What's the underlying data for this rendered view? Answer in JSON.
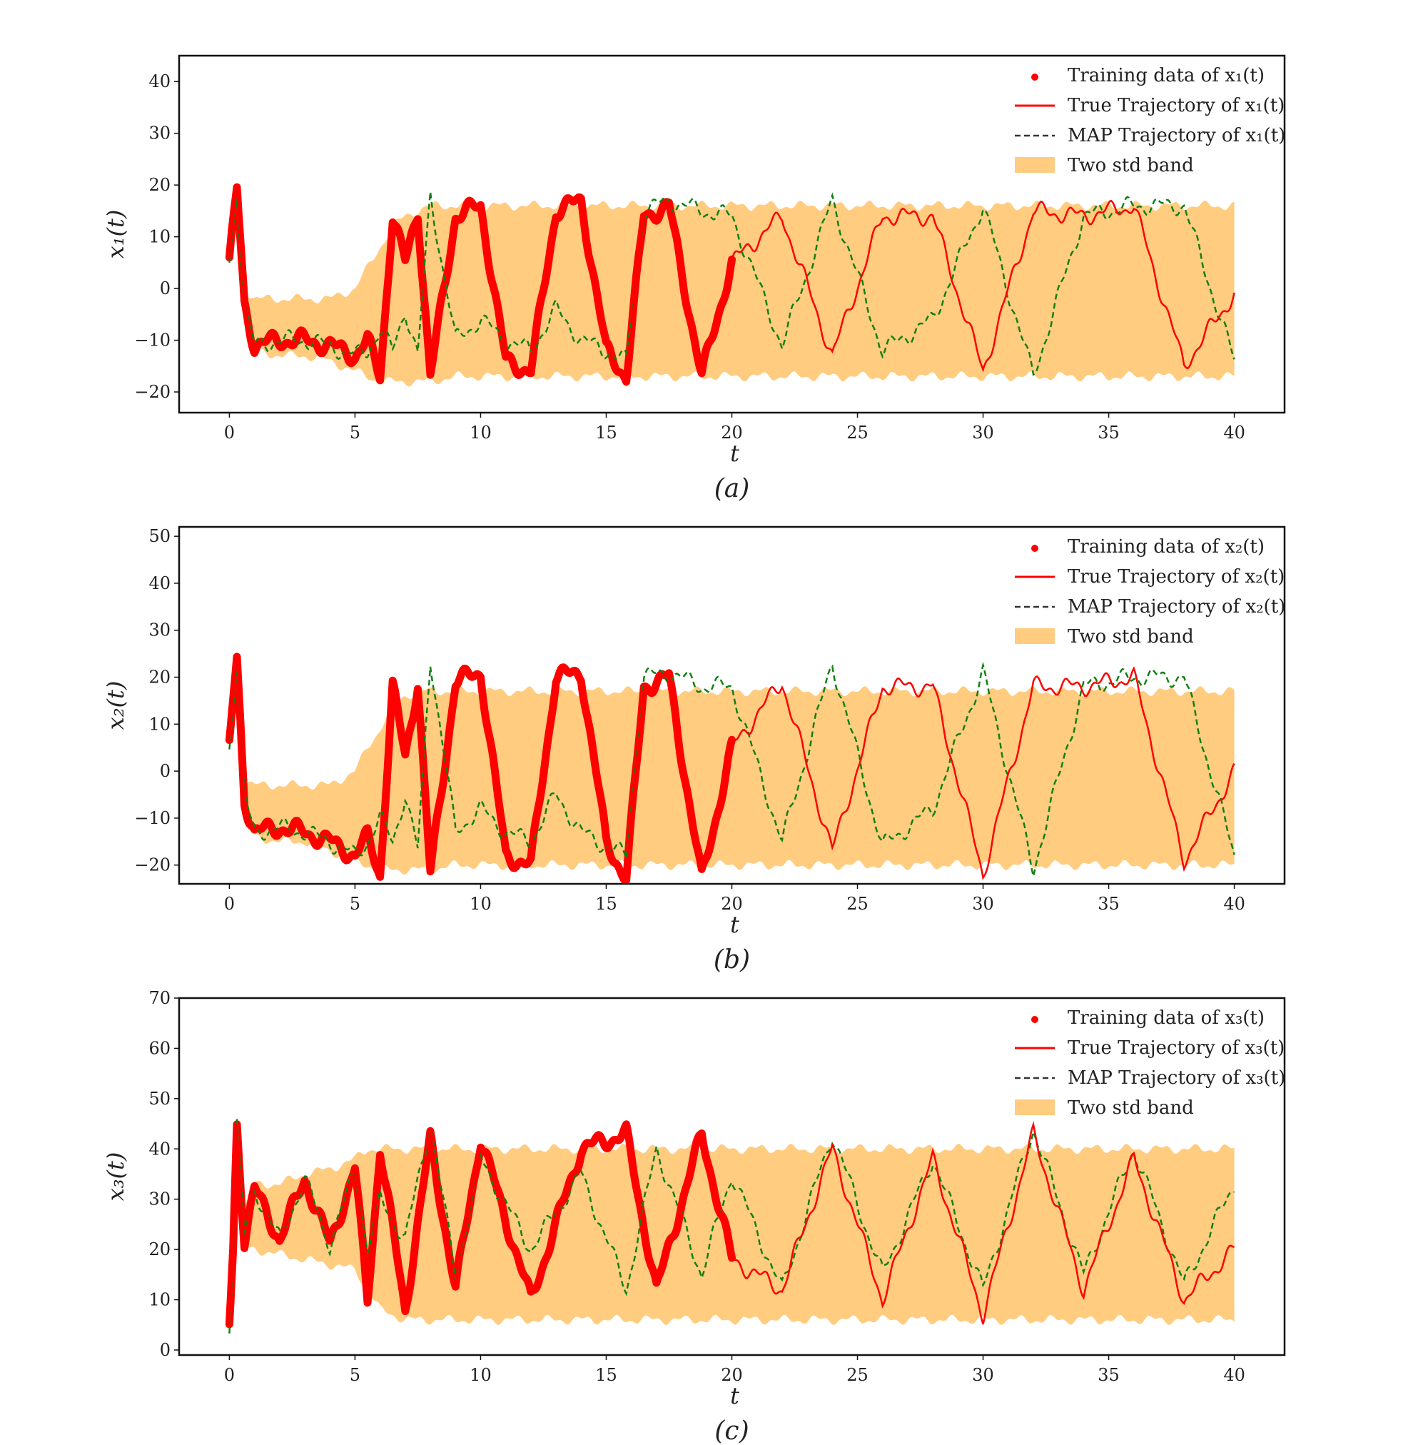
{
  "colors": {
    "training": "#ff0000",
    "true": "#ff0000",
    "map": "#138013",
    "band": "#ffcc80",
    "frame": "#111111"
  },
  "chart_data": [
    {
      "type": "line",
      "caption": "(a)",
      "xlabel": "t",
      "ylabel": "x₁(t)",
      "xlim": [
        -2,
        42
      ],
      "ylim": [
        -24,
        45
      ],
      "xticks": [
        0,
        5,
        10,
        15,
        20,
        25,
        30,
        35,
        40
      ],
      "yticks": [
        -20,
        -10,
        0,
        10,
        20,
        30,
        40
      ],
      "xtick_labels": [
        "0",
        "5",
        "10",
        "15",
        "20",
        "25",
        "30",
        "35",
        "40"
      ],
      "ytick_labels": [
        "−20",
        "−10",
        "0",
        "10",
        "20",
        "30",
        "40"
      ],
      "legend": {
        "position": "top-right",
        "entries": [
          "Training data of x₁(t)",
          "True Trajectory of x₁(t)",
          "MAP Trajectory of x₁(t)",
          "Two std band"
        ]
      },
      "series": [
        {
          "name": "Training data of x₁(t)",
          "kind": "points",
          "x_range": [
            0,
            20
          ]
        },
        {
          "name": "True Trajectory of x₁(t)",
          "kind": "line",
          "x_range": [
            0,
            40
          ]
        },
        {
          "name": "MAP Trajectory of x₁(t)",
          "kind": "dashed",
          "x_range": [
            0,
            40
          ]
        },
        {
          "name": "Two std band",
          "kind": "band",
          "x_range": [
            0,
            40
          ]
        }
      ],
      "keypoints": {
        "t": [
          0,
          0.15,
          0.3,
          0.6,
          1.0,
          2.0,
          3.0,
          4.0,
          5.0,
          5.5,
          6.0,
          6.5,
          7.0,
          7.5,
          8.0,
          9.0,
          10.0,
          11.0,
          12.0,
          13.0,
          14.0,
          15.0,
          15.8,
          16.5,
          17.5,
          18.8,
          20,
          22,
          24,
          26,
          28,
          30,
          32,
          34,
          36,
          38,
          40
        ],
        "true": [
          5,
          12,
          19,
          -3,
          -11,
          -10,
          -10,
          -11,
          -13,
          -10,
          -17,
          14,
          5,
          15,
          -17,
          14,
          16,
          -14,
          -16,
          15,
          17,
          -12,
          -17,
          14,
          16,
          -17,
          5,
          14,
          -13,
          14,
          14,
          -16,
          15,
          14,
          16,
          -15,
          -1
        ],
        "map": [
          5,
          12,
          19,
          -3,
          -11,
          -10,
          -10,
          -11,
          -13,
          -12,
          -8,
          -12,
          -4,
          -13,
          18,
          -10,
          -6,
          -10,
          -12,
          -4,
          -10,
          -12,
          -14,
          15,
          17,
          15,
          14,
          -11,
          17,
          -12,
          -6,
          16,
          -17,
          14,
          16,
          16,
          -14
        ],
        "band_upper": [
          6,
          13,
          20,
          0,
          -2,
          -2,
          -2,
          -2,
          0,
          4,
          8,
          12,
          14,
          15,
          16,
          16,
          16,
          16,
          16,
          16,
          16,
          16,
          16,
          16,
          16,
          16,
          16,
          16,
          16,
          16,
          16,
          16,
          16,
          16,
          16,
          16,
          16
        ],
        "band_lower": [
          5,
          11,
          18,
          -5,
          -12,
          -13,
          -13,
          -14,
          -16,
          -17,
          -18,
          -18,
          -18,
          -18,
          -18,
          -17,
          -17,
          -17,
          -17,
          -17,
          -17,
          -17,
          -17,
          -17,
          -17,
          -17,
          -17,
          -17,
          -17,
          -17,
          -17,
          -17,
          -17,
          -17,
          -17,
          -17,
          -17
        ]
      }
    },
    {
      "type": "line",
      "caption": "(b)",
      "xlabel": "t",
      "ylabel": "x₂(t)",
      "xlim": [
        -2,
        42
      ],
      "ylim": [
        -24,
        52
      ],
      "xticks": [
        0,
        5,
        10,
        15,
        20,
        25,
        30,
        35,
        40
      ],
      "yticks": [
        -20,
        -10,
        0,
        10,
        20,
        30,
        40,
        50
      ],
      "xtick_labels": [
        "0",
        "5",
        "10",
        "15",
        "20",
        "25",
        "30",
        "35",
        "40"
      ],
      "ytick_labels": [
        "−20",
        "−10",
        "0",
        "10",
        "20",
        "30",
        "40",
        "50"
      ],
      "legend": {
        "position": "top-right",
        "entries": [
          "Training data of x₂(t)",
          "True Trajectory of x₂(t)",
          "MAP Trajectory of x₂(t)",
          "Two std band"
        ]
      },
      "series": [
        {
          "name": "Training data of x₂(t)",
          "kind": "points",
          "x_range": [
            0,
            20
          ]
        },
        {
          "name": "True Trajectory of x₂(t)",
          "kind": "line",
          "x_range": [
            0,
            40
          ]
        },
        {
          "name": "MAP Trajectory of x₂(t)",
          "kind": "dashed",
          "x_range": [
            0,
            40
          ]
        },
        {
          "name": "Two std band",
          "kind": "band",
          "x_range": [
            0,
            40
          ]
        }
      ],
      "keypoints": {
        "t": [
          0,
          0.15,
          0.3,
          0.6,
          1.0,
          2.0,
          3.0,
          4.0,
          5.0,
          5.5,
          6.0,
          6.5,
          7.0,
          7.5,
          8.0,
          9.0,
          10.0,
          11.0,
          12.0,
          13.0,
          14.0,
          15.0,
          15.8,
          16.5,
          17.5,
          18.8,
          20,
          22,
          24,
          26,
          28,
          30,
          32,
          34,
          36,
          38,
          40
        ],
        "true": [
          5,
          15,
          24,
          -6,
          -13,
          -12,
          -13,
          -15,
          -18,
          -14,
          -22,
          18,
          3,
          19,
          -22,
          19,
          21,
          -18,
          -20,
          20,
          21,
          -15,
          -23,
          18,
          20,
          -23,
          5,
          19,
          -17,
          18,
          18,
          -22,
          18,
          18,
          20,
          -19,
          0
        ],
        "map": [
          5,
          15,
          24,
          -6,
          -13,
          -12,
          -13,
          -15,
          -18,
          -15,
          -10,
          -15,
          -5,
          -17,
          24,
          -13,
          -8,
          -13,
          -15,
          -5,
          -13,
          -16,
          -18,
          20,
          21,
          18,
          18,
          -15,
          23,
          -16,
          -8,
          21,
          -21,
          18,
          20,
          20,
          -18
        ],
        "band_upper": [
          6,
          16,
          25,
          -2,
          -3,
          -3,
          -3,
          -3,
          0,
          5,
          9,
          14,
          16,
          17,
          17,
          17,
          17,
          17,
          17,
          17,
          17,
          17,
          17,
          17,
          17,
          17,
          17,
          17,
          17,
          17,
          17,
          17,
          17,
          17,
          17,
          17,
          17
        ],
        "band_lower": [
          5,
          14,
          23,
          -8,
          -14,
          -15,
          -15,
          -17,
          -19,
          -20,
          -21,
          -21,
          -21,
          -21,
          -21,
          -20,
          -20,
          -20,
          -20,
          -20,
          -20,
          -20,
          -20,
          -20,
          -20,
          -20,
          -20,
          -20,
          -20,
          -20,
          -20,
          -20,
          -20,
          -20,
          -20,
          -20,
          -20
        ]
      }
    },
    {
      "type": "line",
      "caption": "(c)",
      "xlabel": "t",
      "ylabel": "x₃(t)",
      "xlim": [
        -2,
        42
      ],
      "ylim": [
        -1,
        70
      ],
      "xticks": [
        0,
        5,
        10,
        15,
        20,
        25,
        30,
        35,
        40
      ],
      "yticks": [
        0,
        10,
        20,
        30,
        40,
        50,
        60,
        70
      ],
      "xtick_labels": [
        "0",
        "5",
        "10",
        "15",
        "20",
        "25",
        "30",
        "35",
        "40"
      ],
      "ytick_labels": [
        "0",
        "10",
        "20",
        "30",
        "40",
        "50",
        "60",
        "70"
      ],
      "legend": {
        "position": "top-right",
        "entries": [
          "Training data of x₃(t)",
          "True Trajectory of x₃(t)",
          "MAP Trajectory of x₃(t)",
          "Two std band"
        ]
      },
      "series": [
        {
          "name": "Training data of x₃(t)",
          "kind": "points",
          "x_range": [
            0,
            20
          ]
        },
        {
          "name": "True Trajectory of x₃(t)",
          "kind": "line",
          "x_range": [
            0,
            40
          ]
        },
        {
          "name": "MAP Trajectory of x₃(t)",
          "kind": "dashed",
          "x_range": [
            0,
            40
          ]
        },
        {
          "name": "Two std band",
          "kind": "band",
          "x_range": [
            0,
            40
          ]
        }
      ],
      "keypoints": {
        "t": [
          0,
          0.15,
          0.3,
          0.6,
          1.0,
          2.0,
          3.0,
          4.0,
          5.0,
          5.5,
          6.0,
          7.0,
          8.0,
          9.0,
          10.0,
          12.0,
          14.0,
          15.8,
          17.0,
          18.8,
          20,
          22,
          24,
          26,
          28,
          30,
          32,
          34,
          36,
          38,
          40
        ],
        "true": [
          5,
          20,
          45,
          22,
          32,
          22,
          34,
          21,
          36,
          10,
          40,
          8,
          42,
          12,
          42,
          10,
          40,
          43,
          12,
          43,
          18,
          12,
          40,
          10,
          38,
          7,
          43,
          12,
          38,
          10,
          20
        ],
        "map": [
          5,
          20,
          45,
          22,
          32,
          22,
          34,
          21,
          36,
          20,
          30,
          22,
          45,
          15,
          38,
          20,
          35,
          12,
          40,
          15,
          35,
          12,
          43,
          15,
          38,
          12,
          44,
          15,
          40,
          13,
          33
        ],
        "band_upper": [
          6,
          21,
          46,
          28,
          33,
          33,
          35,
          36,
          38,
          40,
          40,
          40,
          40,
          40,
          40,
          40,
          40,
          40,
          40,
          40,
          40,
          40,
          40,
          40,
          40,
          40,
          40,
          40,
          40,
          40,
          40
        ],
        "band_lower": [
          4,
          19,
          44,
          20,
          20,
          19,
          18,
          17,
          16,
          12,
          8,
          6,
          6,
          6,
          6,
          6,
          6,
          6,
          6,
          6,
          6,
          6,
          6,
          6,
          6,
          6,
          6,
          6,
          6,
          6,
          6
        ]
      }
    }
  ]
}
